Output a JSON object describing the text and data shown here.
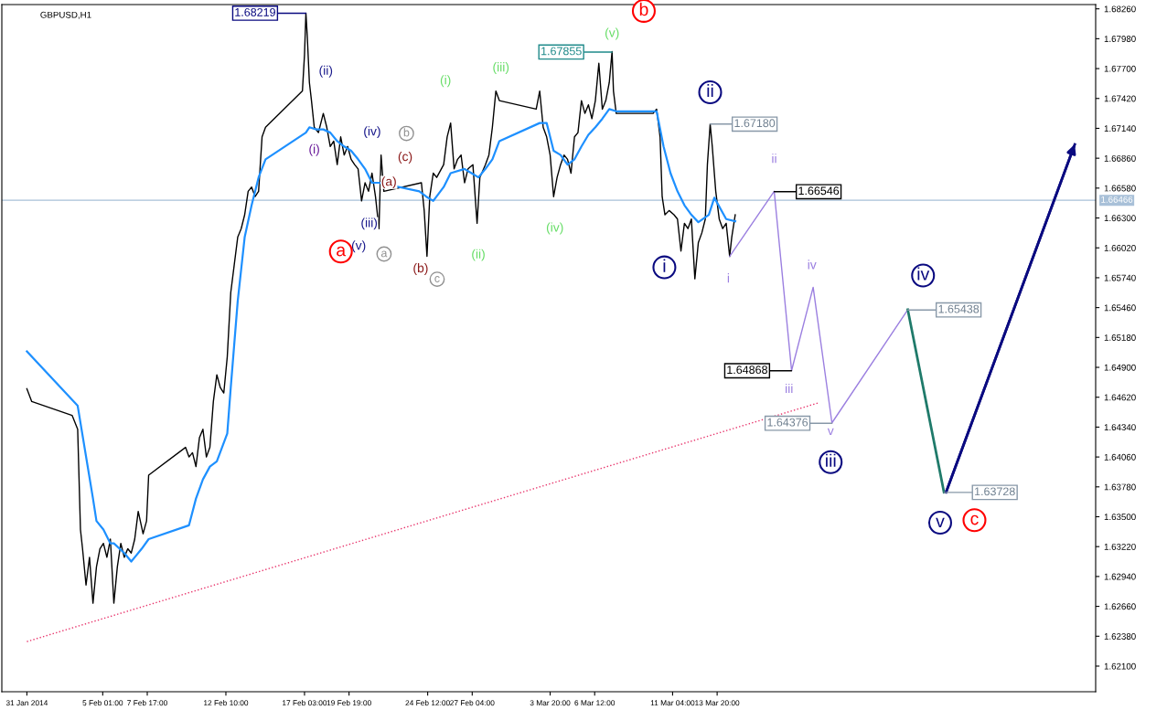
{
  "chart_data": {
    "type": "line",
    "title": "GBPUSD,H1",
    "xlim": [
      "2014-01-30T00:00",
      "2014-04-05T12:00"
    ],
    "ylim": [
      1.6186,
      1.683
    ],
    "xticks": [
      {
        "value": "2014-01-31T12:00",
        "label": "31 Jan 2014"
      },
      {
        "value": "2014-02-05T01:00",
        "label": "5 Feb 01:00"
      },
      {
        "value": "2014-02-07T17:00",
        "label": "7 Feb 17:00"
      },
      {
        "value": "2014-02-12T10:00",
        "label": "12 Feb 10:00"
      },
      {
        "value": "2014-02-17T03:00",
        "label": "17 Feb 03:00"
      },
      {
        "value": "2014-02-19T19:00",
        "label": "19 Feb 19:00"
      },
      {
        "value": "2014-02-24T12:00",
        "label": "24 Feb 12:00"
      },
      {
        "value": "2014-02-27T04:00",
        "label": "27 Feb 04:00"
      },
      {
        "value": "2014-03-03T20:00",
        "label": "3 Mar 20:00"
      },
      {
        "value": "2014-03-06T12:00",
        "label": "6 Mar 12:00"
      },
      {
        "value": "2014-03-11T04:00",
        "label": "11 Mar 04:00"
      },
      {
        "value": "2014-03-13T20:00",
        "label": "13 Mar 20:00"
      }
    ],
    "yticks": [
      {
        "value": 1.621,
        "label": "1.62100"
      },
      {
        "value": 1.6238,
        "label": "1.62380"
      },
      {
        "value": 1.6266,
        "label": "1.62660"
      },
      {
        "value": 1.6294,
        "label": "1.62940"
      },
      {
        "value": 1.6322,
        "label": "1.63220"
      },
      {
        "value": 1.635,
        "label": "1.63500"
      },
      {
        "value": 1.6378,
        "label": "1.63780"
      },
      {
        "value": 1.6406,
        "label": "1.64060"
      },
      {
        "value": 1.6434,
        "label": "1.64340"
      },
      {
        "value": 1.6462,
        "label": "1.64620"
      },
      {
        "value": 1.649,
        "label": "1.64900"
      },
      {
        "value": 1.6518,
        "label": "1.65180"
      },
      {
        "value": 1.6546,
        "label": "1.65460"
      },
      {
        "value": 1.6574,
        "label": "1.65740"
      },
      {
        "value": 1.6602,
        "label": "1.66020"
      },
      {
        "value": 1.663,
        "label": "1.66300"
      },
      {
        "value": 1.6658,
        "label": "1.66580"
      },
      {
        "value": 1.6686,
        "label": "1.66860"
      },
      {
        "value": 1.6714,
        "label": "1.67140"
      },
      {
        "value": 1.6742,
        "label": "1.67420"
      },
      {
        "value": 1.677,
        "label": "1.67700"
      },
      {
        "value": 1.6798,
        "label": "1.67980"
      },
      {
        "value": 1.6826,
        "label": "1.68260"
      }
    ],
    "grid": false,
    "legend": false,
    "marker": "none",
    "ref_lines": [
      {
        "axis": "y",
        "value": 1.66466,
        "label": "1.66466",
        "color": "#a8c0d8"
      }
    ],
    "series": [
      {
        "color": "#000000",
        "x": [
          "2014-01-31T12:00",
          "2014-01-31T19:00",
          "2014-02-03T05:00",
          "2014-02-03T13:00",
          "2014-02-03T17:00",
          "2014-02-03T20:00",
          "2014-02-04T01:00",
          "2014-02-04T06:00",
          "2014-02-04T11:00",
          "2014-02-04T16:00",
          "2014-02-04T21:00",
          "2014-02-05T02:00",
          "2014-02-05T07:00",
          "2014-02-05T12:00",
          "2014-02-05T17:00",
          "2014-02-05T22:00",
          "2014-02-06T03:00",
          "2014-02-06T08:00",
          "2014-02-06T13:00",
          "2014-02-06T18:00",
          "2014-02-06T23:00",
          "2014-02-07T04:00",
          "2014-02-07T11:00",
          "2014-02-07T16:00",
          "2014-02-07T19:00",
          "2014-02-10T00:00",
          "2014-02-10T05:00",
          "2014-02-10T10:00",
          "2014-02-10T15:00",
          "2014-02-10T20:00",
          "2014-02-11T01:00",
          "2014-02-11T06:00",
          "2014-02-11T11:00",
          "2014-02-11T16:00",
          "2014-02-11T21:00",
          "2014-02-12T02:00",
          "2014-02-12T07:00",
          "2014-02-12T12:00",
          "2014-02-12T17:00",
          "2014-02-12T22:00",
          "2014-02-13T03:00",
          "2014-02-13T08:00",
          "2014-02-13T13:00",
          "2014-02-13T18:00",
          "2014-02-13T23:00",
          "2014-02-14T04:00",
          "2014-02-14T09:00",
          "2014-02-14T14:00",
          "2014-02-14T19:00",
          "2014-02-17T00:00",
          "2014-02-17T03:00",
          "2014-02-17T05:00",
          "2014-02-17T07:00",
          "2014-02-17T10:00",
          "2014-02-17T13:00",
          "2014-02-17T17:00",
          "2014-02-17T23:00",
          "2014-02-18T06:00",
          "2014-02-18T11:00",
          "2014-02-18T16:00",
          "2014-02-18T21:00",
          "2014-02-19T02:00",
          "2014-02-19T07:00",
          "2014-02-19T12:00",
          "2014-02-19T17:00",
          "2014-02-19T22:00",
          "2014-02-20T03:00",
          "2014-02-20T08:00",
          "2014-02-20T13:00",
          "2014-02-20T18:00",
          "2014-02-20T23:00",
          "2014-02-21T04:00",
          "2014-02-21T09:00",
          "2014-02-21T14:00",
          "2014-02-21T17:00",
          "2014-02-21T21:00",
          "2014-02-24T03:00",
          "2014-02-24T07:00",
          "2014-02-24T11:00",
          "2014-02-24T15:00",
          "2014-02-24T20:00",
          "2014-02-25T01:00",
          "2014-02-25T11:00",
          "2014-02-25T16:00",
          "2014-02-25T21:00",
          "2014-02-26T02:00",
          "2014-02-26T07:00",
          "2014-02-26T12:00",
          "2014-02-26T17:00",
          "2014-02-26T22:00",
          "2014-02-27T05:00",
          "2014-02-27T11:00",
          "2014-02-27T15:00",
          "2014-02-27T23:00",
          "2014-02-28T04:00",
          "2014-02-28T09:00",
          "2014-02-28T14:00",
          "2014-02-28T19:00",
          "2014-03-03T00:00",
          "2014-03-03T05:00",
          "2014-03-03T10:00",
          "2014-03-03T15:00",
          "2014-03-03T20:00",
          "2014-03-04T01:00",
          "2014-03-04T06:00",
          "2014-03-04T11:00",
          "2014-03-04T16:00",
          "2014-03-04T21:00",
          "2014-03-05T02:00",
          "2014-03-05T07:00",
          "2014-03-05T12:00",
          "2014-03-05T17:00",
          "2014-03-05T22:00",
          "2014-03-06T03:00",
          "2014-03-06T08:00",
          "2014-03-06T13:00",
          "2014-03-06T18:00",
          "2014-03-06T23:00",
          "2014-03-07T04:00",
          "2014-03-07T09:00",
          "2014-03-07T13:00",
          "2014-03-07T15:00",
          "2014-03-07T19:00",
          "2014-03-10T00:00",
          "2014-03-10T05:00",
          "2014-03-10T10:00",
          "2014-03-10T13:00",
          "2014-03-10T17:00",
          "2014-03-10T23:00",
          "2014-03-11T06:00",
          "2014-03-11T11:00",
          "2014-03-11T16:00",
          "2014-03-11T21:00",
          "2014-03-12T02:00",
          "2014-03-12T07:00",
          "2014-03-12T12:00",
          "2014-03-12T17:00",
          "2014-03-12T22:00",
          "2014-03-13T03:00",
          "2014-03-13T06:00",
          "2014-03-13T10:00",
          "2014-03-13T13:00",
          "2014-03-13T18:00",
          "2014-03-13T23:00",
          "2014-03-14T04:00",
          "2014-03-14T09:00",
          "2014-03-14T14:00",
          "2014-03-14T17:00",
          "2014-03-14T22:00"
        ],
        "values": [
          1.647,
          1.6458,
          1.6445,
          1.6432,
          1.6338,
          1.632,
          1.6286,
          1.6312,
          1.6269,
          1.6303,
          1.632,
          1.6325,
          1.6312,
          1.6329,
          1.6269,
          1.6303,
          1.6325,
          1.6312,
          1.632,
          1.6316,
          1.6329,
          1.6355,
          1.6334,
          1.6346,
          1.6389,
          1.6415,
          1.6406,
          1.641,
          1.6397,
          1.6424,
          1.6432,
          1.6406,
          1.6415,
          1.6458,
          1.6483,
          1.6471,
          1.6466,
          1.65,
          1.656,
          1.6586,
          1.6612,
          1.662,
          1.6633,
          1.6655,
          1.6659,
          1.665,
          1.6655,
          1.6706,
          1.6715,
          1.6749,
          1.6783,
          1.6822,
          1.68,
          1.6757,
          1.674,
          1.6715,
          1.671,
          1.6728,
          1.6715,
          1.6697,
          1.6702,
          1.668,
          1.6706,
          1.6689,
          1.6697,
          1.6685,
          1.668,
          1.6676,
          1.6646,
          1.6663,
          1.6655,
          1.6672,
          1.665,
          1.662,
          1.6689,
          1.6655,
          1.6663,
          1.6637,
          1.6594,
          1.665,
          1.6672,
          1.6668,
          1.668,
          1.6706,
          1.6719,
          1.6676,
          1.6685,
          1.6689,
          1.6663,
          1.6676,
          1.668,
          1.6625,
          1.6668,
          1.668,
          1.6689,
          1.6715,
          1.6749,
          1.674,
          1.6732,
          1.6749,
          1.6715,
          1.6706,
          1.6689,
          1.665,
          1.6668,
          1.668,
          1.6689,
          1.6685,
          1.6672,
          1.6706,
          1.671,
          1.674,
          1.6728,
          1.6736,
          1.6723,
          1.674,
          1.6775,
          1.6732,
          1.674,
          1.6757,
          1.6786,
          1.6749,
          1.6728,
          1.6728,
          1.6732,
          1.6706,
          1.665,
          1.6633,
          1.6637,
          1.6633,
          1.6629,
          1.6599,
          1.6625,
          1.662,
          1.6629,
          1.6573,
          1.6607,
          1.6616,
          1.6629,
          1.668,
          1.6718,
          1.6697,
          1.6655,
          1.6629,
          1.662,
          1.6625,
          1.6594,
          1.6612,
          1.6633
        ]
      },
      {
        "color": "#1e90ff",
        "x": [
          "2014-01-31T12:00",
          "2014-02-03T13:00",
          "2014-02-04T11:00",
          "2014-02-04T16:00",
          "2014-02-05T02:00",
          "2014-02-05T12:00",
          "2014-02-05T17:00",
          "2014-02-06T08:00",
          "2014-02-06T18:00",
          "2014-02-06T23:00",
          "2014-02-07T09:00",
          "2014-02-07T19:00",
          "2014-02-10T05:00",
          "2014-02-10T15:00",
          "2014-02-11T01:00",
          "2014-02-11T11:00",
          "2014-02-11T21:00",
          "2014-02-12T12:00",
          "2014-02-12T17:00",
          "2014-02-13T03:00",
          "2014-02-13T13:00",
          "2014-02-13T23:00",
          "2014-02-14T09:00",
          "2014-02-14T19:00",
          "2014-02-17T05:00",
          "2014-02-17T10:00",
          "2014-02-17T20:00",
          "2014-02-18T06:00",
          "2014-02-18T16:00",
          "2014-02-19T02:00",
          "2014-02-19T12:00",
          "2014-02-19T22:00",
          "2014-02-20T08:00",
          "2014-02-20T18:00",
          "2014-02-21T04:00",
          "2014-02-21T14:00",
          "2014-02-24T00:00",
          "2014-02-24T10:00",
          "2014-02-24T20:00",
          "2014-02-25T11:00",
          "2014-02-25T21:00",
          "2014-02-26T17:00",
          "2014-02-27T03:00",
          "2014-02-27T13:00",
          "2014-02-27T23:00",
          "2014-02-28T09:00",
          "2014-02-28T19:00",
          "2014-03-03T05:00",
          "2014-03-03T15:00",
          "2014-03-04T01:00",
          "2014-03-04T11:00",
          "2014-03-04T21:00",
          "2014-03-05T07:00",
          "2014-03-05T17:00",
          "2014-03-06T03:00",
          "2014-03-06T13:00",
          "2014-03-06T23:00",
          "2014-03-07T09:00",
          "2014-03-07T19:00",
          "2014-03-10T05:00",
          "2014-03-10T15:00",
          "2014-03-11T01:00",
          "2014-03-11T11:00",
          "2014-03-11T21:00",
          "2014-03-12T07:00",
          "2014-03-12T17:00",
          "2014-03-13T08:00",
          "2014-03-13T16:00",
          "2014-03-14T09:00",
          "2014-03-14T22:00"
        ],
        "values": [
          1.6505,
          1.6454,
          1.6367,
          1.6346,
          1.6338,
          1.6325,
          1.6325,
          1.6316,
          1.6308,
          1.6312,
          1.632,
          1.6329,
          1.6342,
          1.6367,
          1.6385,
          1.6397,
          1.6402,
          1.6428,
          1.6471,
          1.6552,
          1.6612,
          1.6642,
          1.6668,
          1.6685,
          1.671,
          1.6715,
          1.6713,
          1.6713,
          1.671,
          1.6702,
          1.6697,
          1.6693,
          1.6685,
          1.6676,
          1.6663,
          1.6663,
          1.6655,
          1.665,
          1.6646,
          1.6659,
          1.6672,
          1.6676,
          1.6672,
          1.6668,
          1.6676,
          1.6685,
          1.6702,
          1.6719,
          1.6719,
          1.6693,
          1.6689,
          1.668,
          1.6685,
          1.6697,
          1.6708,
          1.6715,
          1.6723,
          1.6732,
          1.673,
          1.673,
          1.6697,
          1.6672,
          1.6655,
          1.6642,
          1.6633,
          1.6626,
          1.6633,
          1.6649,
          1.6629,
          1.6627
        ]
      },
      {
        "color": "#e8336b",
        "line_style": "dotted",
        "x": [
          "2014-01-31T12:00",
          "2014-03-19T23:00"
        ],
        "values": [
          1.6233,
          1.6457
        ]
      },
      {
        "color": "#9b7fe0",
        "x": [
          "2014-03-14T14:00",
          "2014-03-17T06:00",
          "2014-03-18T07:00",
          "2014-03-19T14:00",
          "2014-03-20T17:00",
          "2014-03-25T06:00"
        ],
        "values": [
          1.6594,
          1.6655,
          1.6487,
          1.6565,
          1.6438,
          1.6544
        ]
      },
      {
        "color": "#1f7a6a",
        "x": [
          "2014-03-25T06:00",
          "2014-03-27T10:00"
        ],
        "values": [
          1.6544,
          1.6373
        ]
      },
      {
        "color": "#0a0a80",
        "x": [
          "2014-03-27T13:00",
          "2014-04-04T06:00"
        ],
        "values": [
          1.6373,
          1.6699
        ]
      }
    ],
    "annotations": [
      {
        "text": "1.68219",
        "x": "2014-02-17T05:00",
        "y": 1.68219
      },
      {
        "text": "1.67855",
        "x": "2014-03-07T13:00",
        "y": 1.67855
      },
      {
        "text": "1.67180",
        "x": "2014-03-13T10:00",
        "y": 1.6718
      },
      {
        "text": "1.66546",
        "x": "2014-03-17T06:00",
        "y": 1.66546
      },
      {
        "text": "1.64868",
        "x": "2014-03-18T07:00",
        "y": 1.64868
      },
      {
        "text": "1.64376",
        "x": "2014-03-20T17:00",
        "y": 1.64376
      },
      {
        "text": "1.65438",
        "x": "2014-03-25T06:00",
        "y": 1.65438
      },
      {
        "text": "1.63728",
        "x": "2014-03-27T10:00",
        "y": 1.63728
      },
      {
        "text": "(i)",
        "x": "2014-02-17T17:00",
        "y": 1.6715
      },
      {
        "text": "(ii)",
        "x": "2014-02-18T06:00",
        "y": 1.6728
      },
      {
        "text": "(iii)",
        "x": "2014-02-20T13:00",
        "y": 1.6646
      },
      {
        "text": "(iv)",
        "x": "2014-02-21T17:00",
        "y": 1.6689
      },
      {
        "text": "(v)",
        "x": "2014-02-21T14:00",
        "y": 1.662
      },
      {
        "text": "a",
        "x": "2014-02-21T14:00",
        "y": 1.662
      },
      {
        "text": "(b)",
        "x": "2014-02-24T11:00",
        "y": 1.6594
      },
      {
        "text": "c",
        "x": "2014-02-24T11:00",
        "y": 1.6594
      },
      {
        "text": "b",
        "x": "2014-02-21T17:00",
        "y": 1.6689
      },
      {
        "text": "(c)",
        "x": "2014-02-21T17:00",
        "y": 1.6689
      },
      {
        "text": "(a)",
        "x": "2014-02-21T21:00",
        "y": 1.6655
      },
      {
        "text": "a",
        "x": "2014-02-21T14:00",
        "y": 1.662
      },
      {
        "text": "(i)",
        "x": "2014-02-25T21:00",
        "y": 1.6719
      },
      {
        "text": "(ii)",
        "x": "2014-02-27T11:00",
        "y": 1.6625
      },
      {
        "text": "(iii)",
        "x": "2014-02-28T14:00",
        "y": 1.6749
      },
      {
        "text": "(iv)",
        "x": "2014-03-04T01:00",
        "y": 1.665
      },
      {
        "text": "(v)",
        "x": "2014-03-07T13:00",
        "y": 1.6786
      },
      {
        "text": "b",
        "x": "2014-03-07T13:00",
        "y": 1.6786
      },
      {
        "text": "i",
        "x": "2014-03-12T12:00",
        "y": 1.6573
      },
      {
        "text": "ii",
        "x": "2014-03-13T10:00",
        "y": 1.6718
      },
      {
        "text": "i",
        "x": "2014-03-14T14:00",
        "y": 1.6594
      },
      {
        "text": "ii",
        "x": "2014-03-17T06:00",
        "y": 1.6655
      },
      {
        "text": "iii",
        "x": "2014-03-18T07:00",
        "y": 1.6487
      },
      {
        "text": "iv",
        "x": "2014-03-19T14:00",
        "y": 1.6565
      },
      {
        "text": "v",
        "x": "2014-03-20T17:00",
        "y": 1.6438
      },
      {
        "text": "iii",
        "x": "2014-03-20T17:00",
        "y": 1.6438
      },
      {
        "text": "iv",
        "x": "2014-03-25T06:00",
        "y": 1.6544
      },
      {
        "text": "v",
        "x": "2014-03-27T10:00",
        "y": 1.6373
      },
      {
        "text": "c",
        "x": "2014-03-27T10:00",
        "y": 1.6373
      }
    ]
  }
}
